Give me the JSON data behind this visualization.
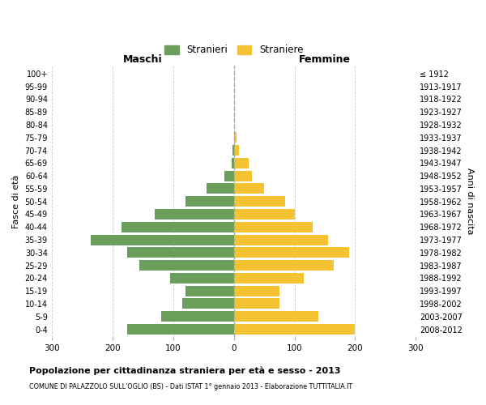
{
  "age_groups": [
    "0-4",
    "5-9",
    "10-14",
    "15-19",
    "20-24",
    "25-29",
    "30-34",
    "35-39",
    "40-44",
    "45-49",
    "50-54",
    "55-59",
    "60-64",
    "65-69",
    "70-74",
    "75-79",
    "80-84",
    "85-89",
    "90-94",
    "95-99",
    "100+"
  ],
  "birth_years": [
    "2008-2012",
    "2003-2007",
    "1998-2002",
    "1993-1997",
    "1988-1992",
    "1983-1987",
    "1978-1982",
    "1973-1977",
    "1968-1972",
    "1963-1967",
    "1958-1962",
    "1953-1957",
    "1948-1952",
    "1943-1947",
    "1938-1942",
    "1933-1937",
    "1928-1932",
    "1923-1927",
    "1918-1922",
    "1913-1917",
    "≤ 1912"
  ],
  "males": [
    175,
    120,
    85,
    80,
    105,
    155,
    175,
    235,
    185,
    130,
    80,
    45,
    15,
    3,
    2,
    0,
    0,
    0,
    0,
    0,
    0
  ],
  "females": [
    200,
    140,
    75,
    75,
    115,
    165,
    190,
    155,
    130,
    100,
    85,
    50,
    30,
    25,
    8,
    5,
    0,
    1,
    0,
    0,
    0
  ],
  "male_color": "#6a9e5a",
  "female_color": "#f5c332",
  "bar_height": 0.82,
  "xlim": 300,
  "title": "Popolazione per cittadinanza straniera per età e sesso - 2013",
  "subtitle": "COMUNE DI PALAZZOLO SULL'OGLIO (BS) - Dati ISTAT 1° gennaio 2013 - Elaborazione TUTTITALIA.IT",
  "xlabel_left": "Maschi",
  "xlabel_right": "Femmine",
  "ylabel_left": "Fasce di età",
  "ylabel_right": "Anni di nascita",
  "legend_stranieri": "Stranieri",
  "legend_straniere": "Straniere",
  "grid_color": "#cccccc",
  "background_color": "#ffffff",
  "dashed_line_color": "#aaaaaa"
}
